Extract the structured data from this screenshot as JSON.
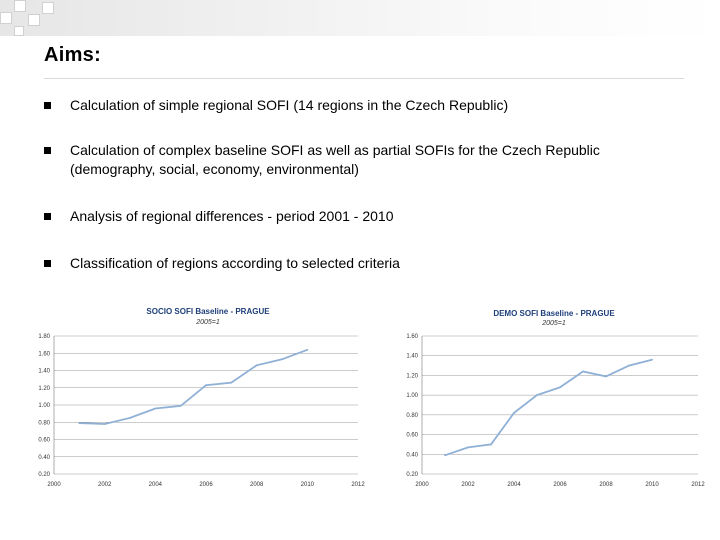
{
  "slide": {
    "title": "Aims:",
    "bullets": [
      "Calculation of simple regional SOFI (14 regions in the Czech Republic)",
      "Calculation of complex baseline SOFI as well as partial SOFIs for the Czech Republic\n(demography, social, economy, environmental)",
      "Analysis of regional differences  - period 2001 - 2010",
      "Classification of regions according to selected criteria"
    ],
    "bullet_icon": "square-bullet-icon"
  },
  "colors": {
    "line": "#8fb0d6",
    "title": "#1f3f7a",
    "grid": "#999999"
  },
  "chart_data": [
    {
      "type": "line",
      "title": "SOCIO SOFI Baseline - PRAGUE",
      "subtitle": "2005=1",
      "x": [
        2001,
        2002,
        2003,
        2004,
        2005,
        2006,
        2007,
        2008,
        2009,
        2010
      ],
      "values": [
        0.79,
        0.78,
        0.85,
        0.96,
        0.99,
        1.23,
        1.26,
        1.46,
        1.53,
        1.64
      ],
      "xlim": [
        2000,
        2012
      ],
      "ylim": [
        0.2,
        1.8
      ],
      "x_ticks": [
        "2000",
        "2002",
        "2004",
        "2006",
        "2008",
        "2010",
        "2012"
      ],
      "y_ticks": [
        "0.20",
        "0.40",
        "0.60",
        "0.80",
        "1.00",
        "1.20",
        "1.40",
        "1.60",
        "1.80"
      ]
    },
    {
      "type": "line",
      "title": "DEMO SOFI Baseline - PRAGUE",
      "subtitle": "2005=1",
      "x": [
        2001,
        2002,
        2003,
        2004,
        2005,
        2006,
        2007,
        2008,
        2009,
        2010
      ],
      "values": [
        0.39,
        0.47,
        0.5,
        0.82,
        1.0,
        1.08,
        1.24,
        1.19,
        1.3,
        1.36
      ],
      "xlim": [
        2000,
        2012
      ],
      "ylim": [
        0.2,
        1.6
      ],
      "x_ticks": [
        "2000",
        "2002",
        "2004",
        "2006",
        "2008",
        "2010",
        "2012"
      ],
      "y_ticks": [
        "0.20",
        "0.40",
        "0.60",
        "0.80",
        "1.00",
        "1.20",
        "1.40",
        "1.60"
      ]
    }
  ]
}
